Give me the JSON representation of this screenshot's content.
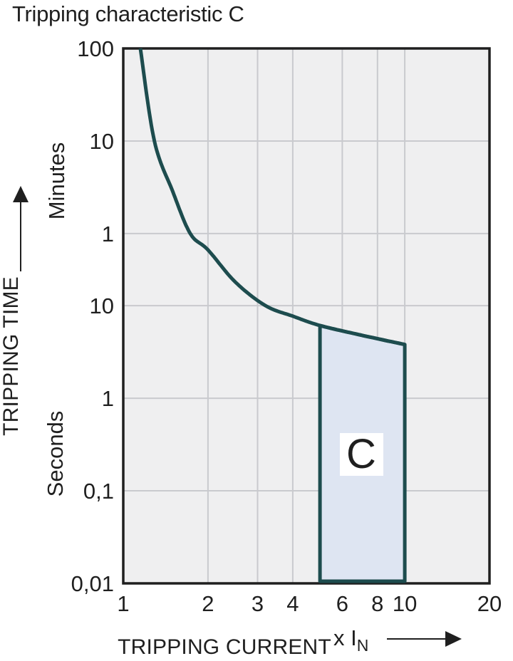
{
  "page": {
    "title": "Tripping characteristic C"
  },
  "chart_data": {
    "type": "line",
    "title": "Tripping characteristic C",
    "x_axis": {
      "label": "TRIPPING CURRENT",
      "unit_prefix": "x I",
      "unit_sub": "N",
      "scale": "log",
      "range": [
        1,
        20
      ],
      "ticks": [
        1,
        2,
        3,
        4,
        6,
        8,
        10,
        20
      ],
      "gridlines": [
        2,
        3,
        4,
        6,
        8,
        10
      ]
    },
    "y_axis": {
      "label": "TRIPPING TIME",
      "scale": "log",
      "range_seconds": [
        0.01,
        6000
      ],
      "unit_labels": [
        {
          "text": "Minutes"
        },
        {
          "text": "Seconds"
        }
      ],
      "ticks": [
        {
          "label": "100",
          "seconds": 6000,
          "unit": "minutes"
        },
        {
          "label": "10",
          "seconds": 600,
          "unit": "minutes"
        },
        {
          "label": "1",
          "seconds": 60,
          "unit": "minutes"
        },
        {
          "label": "10",
          "seconds": 10,
          "unit": "seconds"
        },
        {
          "label": "1",
          "seconds": 1,
          "unit": "seconds"
        },
        {
          "label": "0,1",
          "seconds": 0.1,
          "unit": "seconds"
        },
        {
          "label": "0,01",
          "seconds": 0.01,
          "unit": "seconds"
        }
      ],
      "gridlines_seconds": [
        600,
        60,
        10,
        1,
        0.1
      ]
    },
    "series": [
      {
        "name": "C tripping curve",
        "points": [
          [
            1.15,
            6000
          ],
          [
            1.29,
            600
          ],
          [
            1.5,
            170
          ],
          [
            1.73,
            60
          ],
          [
            2.0,
            40
          ],
          [
            2.5,
            18
          ],
          [
            3.2,
            10
          ],
          [
            4.0,
            7.7
          ],
          [
            5.0,
            6.1
          ],
          [
            7.0,
            4.8
          ],
          [
            10.0,
            3.8
          ]
        ]
      }
    ],
    "region": {
      "label": "C",
      "x_range": [
        5,
        10
      ],
      "top": "curve",
      "bottom_seconds": 0.01
    },
    "legend": "none",
    "grid": "on",
    "colors": {
      "curve": "#1d4c4e",
      "band_fill": "#dee5f2",
      "plot_bg": "#efeff0",
      "grid": "#c9cace",
      "border": "#1f1f1f",
      "text": "#1f1f1f"
    }
  }
}
